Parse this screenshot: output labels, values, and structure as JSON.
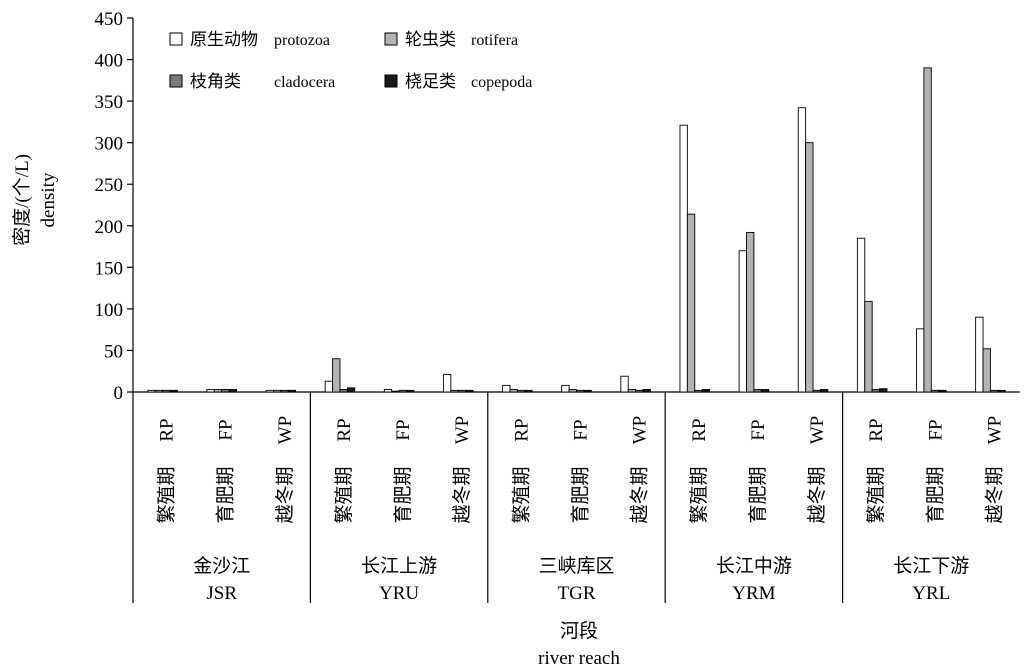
{
  "chart_data": {
    "type": "bar",
    "ylabel_cn": "密度/(个/L)",
    "ylabel_en": "density",
    "xlabel_cn": "河段",
    "xlabel_en": "river reach",
    "ylim": [
      0,
      450
    ],
    "yticks": [
      0,
      50,
      100,
      150,
      200,
      250,
      300,
      350,
      400,
      450
    ],
    "grid": false,
    "legend_position": "top-left",
    "groups": [
      {
        "cn": "金沙江",
        "en": "JSR"
      },
      {
        "cn": "长江上游",
        "en": "YRU"
      },
      {
        "cn": "三峡库区",
        "en": "TGR"
      },
      {
        "cn": "长江中游",
        "en": "YRM"
      },
      {
        "cn": "长江下游",
        "en": "YRL"
      }
    ],
    "periods": [
      {
        "code": "RP",
        "cn": "繁殖期"
      },
      {
        "code": "FP",
        "cn": "育肥期"
      },
      {
        "code": "WP",
        "cn": "越冬期"
      }
    ],
    "series": [
      {
        "name_cn": "原生动物",
        "name_en": "protozoa",
        "color": "#ffffff",
        "values": [
          2,
          3,
          2,
          13,
          3,
          21,
          8,
          8,
          19,
          321,
          170,
          342,
          185,
          76,
          90
        ]
      },
      {
        "name_cn": "轮虫类",
        "name_en": "rotifera",
        "color": "#b3b3b3",
        "values": [
          2,
          3,
          2,
          40,
          1,
          2,
          3,
          3,
          3,
          214,
          192,
          300,
          109,
          390,
          52
        ]
      },
      {
        "name_cn": "枝角类",
        "name_en": "cladocera",
        "color": "#7a7a7a",
        "values": [
          2,
          3,
          2,
          3,
          2,
          2,
          2,
          2,
          2,
          2,
          3,
          2,
          3,
          2,
          2
        ]
      },
      {
        "name_cn": "桡足类",
        "name_en": "copepoda",
        "color": "#1a1a1a",
        "values": [
          2,
          3,
          2,
          5,
          2,
          2,
          2,
          2,
          3,
          3,
          3,
          3,
          4,
          2,
          2
        ]
      }
    ]
  }
}
